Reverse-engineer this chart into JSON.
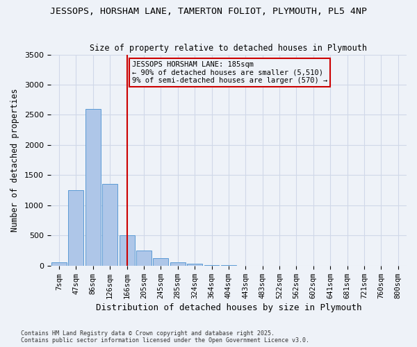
{
  "title_line1": "JESSOPS, HORSHAM LANE, TAMERTON FOLIOT, PLYMOUTH, PL5 4NP",
  "title_line2": "Size of property relative to detached houses in Plymouth",
  "xlabel": "Distribution of detached houses by size in Plymouth",
  "ylabel": "Number of detached properties",
  "bar_categories": [
    "7sqm",
    "47sqm",
    "86sqm",
    "126sqm",
    "166sqm",
    "205sqm",
    "245sqm",
    "285sqm",
    "324sqm",
    "364sqm",
    "404sqm",
    "443sqm",
    "483sqm",
    "522sqm",
    "562sqm",
    "602sqm",
    "641sqm",
    "681sqm",
    "721sqm",
    "760sqm",
    "800sqm"
  ],
  "bar_values": [
    50,
    1250,
    2600,
    1350,
    500,
    250,
    120,
    55,
    30,
    15,
    5,
    0,
    0,
    0,
    0,
    0,
    0,
    0,
    0,
    0,
    0
  ],
  "bar_color": "#aec6e8",
  "bar_edge_color": "#5b9bd5",
  "property_line_x": 4,
  "property_line_label": "JESSOPS HORSHAM LANE: 185sqm",
  "annotation_line1": "← 90% of detached houses are smaller (5,510)",
  "annotation_line2": "9% of semi-detached houses are larger (570) →",
  "ylim": [
    0,
    3500
  ],
  "yticks": [
    0,
    500,
    1000,
    1500,
    2000,
    2500,
    3000,
    3500
  ],
  "grid_color": "#d0d8e8",
  "background_color": "#eef2f8",
  "footer_line1": "Contains HM Land Registry data © Crown copyright and database right 2025.",
  "footer_line2": "Contains public sector information licensed under the Open Government Licence v3.0.",
  "annotation_box_color": "#cc0000",
  "vline_color": "#cc0000"
}
